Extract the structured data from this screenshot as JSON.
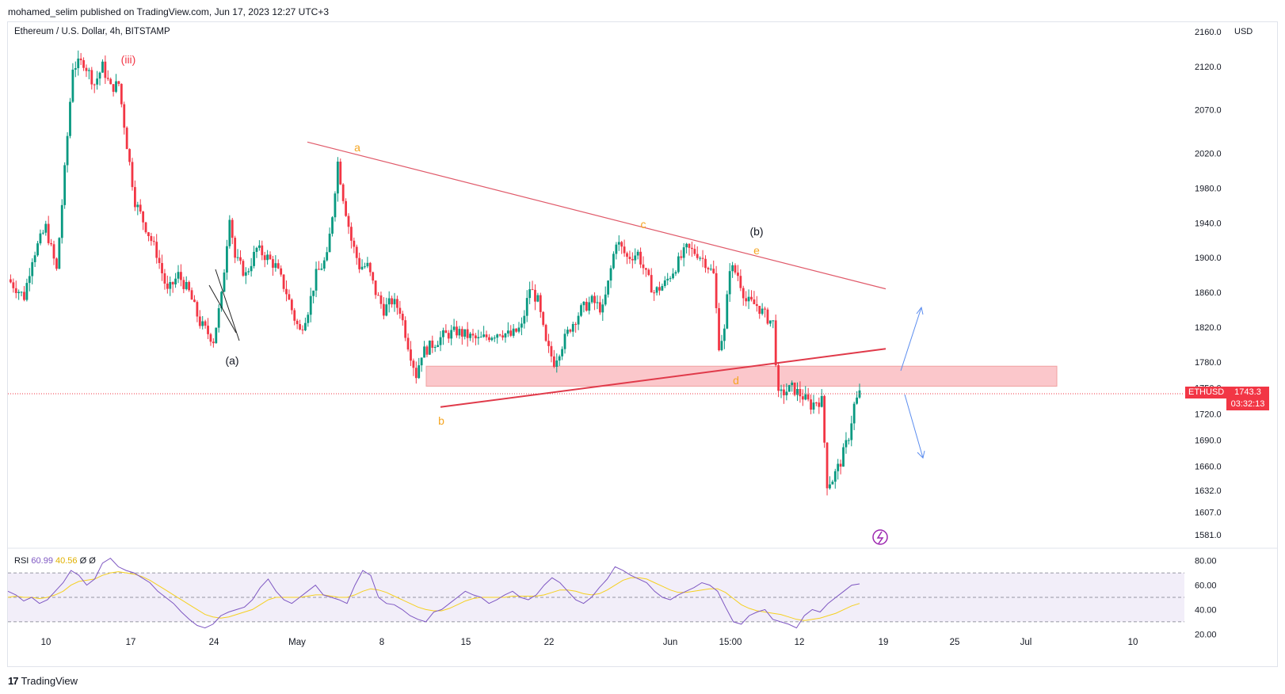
{
  "header": {
    "published": "mohamed_selim published on TradingView.com, Jun 17, 2023 12:27 UTC+3"
  },
  "legend": {
    "symbol": "Ethereum / U.S. Dollar, 4h, BITSTAMP",
    "currency": "USD"
  },
  "price_tag": {
    "symbol": "ETHUSD",
    "price": "1743.3",
    "countdown": "03:32:13"
  },
  "rsi_legend": {
    "name": "RSI",
    "v1": "60.99",
    "v2": "40.56",
    "v3": "Ø",
    "v4": "Ø"
  },
  "footer": {
    "brand": "TradingView",
    "logo": "17"
  },
  "colors": {
    "up": "#089981",
    "down": "#f23645",
    "trend": "#e05a6a",
    "wave": "#f5a623",
    "zone": "rgba(242,54,69,0.28)",
    "rsi": "#7e57c2",
    "rsi_ma": "#f5d020",
    "arrow": "#5b8def"
  },
  "chart_data": [
    {
      "type": "candlestick",
      "title": "Ethereum / U.S. Dollar, 4h, BITSTAMP",
      "ylabel": "USD",
      "ylim": [
        1581,
        2160
      ],
      "y_ticks": [
        "2160.0",
        "2120.0",
        "2070.0",
        "2020.0",
        "1980.0",
        "1940.0",
        "1900.0",
        "1860.0",
        "1820.0",
        "1780.0",
        "1750.0",
        "1720.0",
        "1690.0",
        "1660.0",
        "1632.0",
        "1607.0",
        "1581.0"
      ],
      "x_ticks": [
        "10",
        "17",
        "24",
        "May",
        "8",
        "15",
        "22",
        "Jun",
        "15:00",
        "12",
        "19",
        "25",
        "Jul",
        "10"
      ],
      "last_price": 1743.3,
      "series": [
        {
          "name": "path",
          "points": [
            [
              0,
              1875
            ],
            [
              6,
              1855
            ],
            [
              9,
              1900
            ],
            [
              14,
              1935
            ],
            [
              18,
              1885
            ],
            [
              21,
              2000
            ],
            [
              24,
              2120
            ],
            [
              28,
              2125
            ],
            [
              32,
              2100
            ],
            [
              35,
              2120
            ],
            [
              38,
              2095
            ],
            [
              41,
              2100
            ],
            [
              44,
              2030
            ],
            [
              47,
              1965
            ],
            [
              51,
              1935
            ],
            [
              55,
              1905
            ],
            [
              59,
              1860
            ],
            [
              63,
              1880
            ],
            [
              67,
              1860
            ],
            [
              71,
              1825
            ],
            [
              76,
              1805
            ],
            [
              79,
              1855
            ],
            [
              82,
              1950
            ],
            [
              84,
              1900
            ],
            [
              88,
              1880
            ],
            [
              92,
              1910
            ],
            [
              96,
              1900
            ],
            [
              99,
              1890
            ],
            [
              103,
              1860
            ],
            [
              106,
              1830
            ],
            [
              108,
              1815
            ],
            [
              111,
              1840
            ],
            [
              114,
              1880
            ],
            [
              118,
              1900
            ],
            [
              120,
              1950
            ],
            [
              122,
              2010
            ],
            [
              124,
              1970
            ],
            [
              127,
              1920
            ],
            [
              130,
              1890
            ],
            [
              133,
              1890
            ],
            [
              136,
              1860
            ],
            [
              139,
              1840
            ],
            [
              142,
              1850
            ],
            [
              145,
              1840
            ],
            [
              148,
              1800
            ],
            [
              151,
              1765
            ],
            [
              153,
              1790
            ],
            [
              157,
              1800
            ],
            [
              161,
              1810
            ],
            [
              166,
              1815
            ],
            [
              170,
              1810
            ],
            [
              174,
              1805
            ],
            [
              178,
              1810
            ],
            [
              182,
              1815
            ],
            [
              186,
              1810
            ],
            [
              190,
              1820
            ],
            [
              193,
              1865
            ],
            [
              196,
              1850
            ],
            [
              199,
              1800
            ],
            [
              202,
              1780
            ],
            [
              205,
              1800
            ],
            [
              208,
              1820
            ],
            [
              212,
              1840
            ],
            [
              216,
              1850
            ],
            [
              220,
              1840
            ],
            [
              222,
              1870
            ],
            [
              225,
              1920
            ],
            [
              229,
              1900
            ],
            [
              233,
              1905
            ],
            [
              236,
              1880
            ],
            [
              239,
              1860
            ],
            [
              243,
              1870
            ],
            [
              247,
              1890
            ],
            [
              251,
              1910
            ],
            [
              255,
              1905
            ],
            [
              258,
              1895
            ],
            [
              261,
              1880
            ],
            [
              263,
              1800
            ],
            [
              265,
              1815
            ],
            [
              267,
              1890
            ],
            [
              270,
              1880
            ],
            [
              273,
              1850
            ],
            [
              277,
              1845
            ],
            [
              281,
              1830
            ],
            [
              283,
              1825
            ],
            [
              285,
              1740
            ],
            [
              287,
              1745
            ],
            [
              290,
              1750
            ],
            [
              294,
              1740
            ],
            [
              297,
              1730
            ],
            [
              299,
              1735
            ],
            [
              301,
              1735
            ],
            [
              303,
              1640
            ],
            [
              305,
              1645
            ],
            [
              308,
              1665
            ],
            [
              311,
              1695
            ],
            [
              313,
              1730
            ],
            [
              315,
              1743.3
            ]
          ]
        }
      ],
      "annotations": {
        "waves": [
          "(iii)",
          "(a)",
          "a",
          "b",
          "c",
          "(b)",
          "e",
          "d"
        ],
        "upper_trendline": [
          [
            2033,
            0
          ],
          [
            1864,
            320
          ]
        ],
        "lower_trendline": [
          [
            1728,
            0
          ],
          [
            1795,
            320
          ]
        ],
        "zone": [
          1752,
          1775
        ]
      }
    },
    {
      "type": "line",
      "title": "RSI",
      "ylim": [
        15,
        85
      ],
      "y_ticks": [
        "80.00",
        "60.00",
        "40.00",
        "20.00"
      ],
      "bands": [
        30,
        50,
        70
      ],
      "series": [
        {
          "name": "RSI",
          "values": [
            55,
            52,
            47,
            50,
            45,
            48,
            55,
            62,
            72,
            68,
            60,
            65,
            78,
            82,
            75,
            72,
            70,
            66,
            62,
            55,
            50,
            45,
            38,
            32,
            27,
            25,
            28,
            35,
            38,
            40,
            42,
            48,
            58,
            65,
            55,
            48,
            45,
            50,
            55,
            60,
            52,
            50,
            48,
            45,
            60,
            72,
            68,
            50,
            45,
            44,
            40,
            35,
            32,
            30,
            38,
            40,
            45,
            50,
            55,
            52,
            50,
            45,
            48,
            52,
            55,
            50,
            48,
            52,
            60,
            66,
            62,
            55,
            48,
            45,
            50,
            58,
            65,
            75,
            72,
            68,
            65,
            62,
            55,
            50,
            48,
            52,
            55,
            58,
            62,
            60,
            55,
            42,
            30,
            28,
            35,
            38,
            40,
            32,
            30,
            28,
            25,
            35,
            40,
            38,
            45,
            50,
            55,
            60,
            61
          ]
        },
        {
          "name": "MA",
          "values": [
            50,
            51,
            50,
            50,
            49,
            50,
            52,
            55,
            60,
            63,
            64,
            65,
            68,
            70,
            71,
            70,
            69,
            67,
            64,
            60,
            56,
            52,
            48,
            44,
            40,
            36,
            34,
            33,
            34,
            36,
            38,
            40,
            44,
            48,
            50,
            50,
            50,
            50,
            51,
            52,
            52,
            51,
            50,
            50,
            52,
            55,
            57,
            56,
            54,
            51,
            48,
            45,
            42,
            40,
            39,
            39,
            41,
            44,
            47,
            49,
            50,
            50,
            50,
            50,
            51,
            51,
            51,
            51,
            52,
            54,
            56,
            56,
            55,
            53,
            52,
            53,
            56,
            60,
            64,
            66,
            66,
            65,
            62,
            59,
            56,
            54,
            54,
            55,
            56,
            57,
            57,
            54,
            49,
            44,
            41,
            39,
            38,
            37,
            36,
            34,
            32,
            31,
            32,
            33,
            35,
            37,
            40,
            43,
            45
          ]
        }
      ]
    }
  ]
}
